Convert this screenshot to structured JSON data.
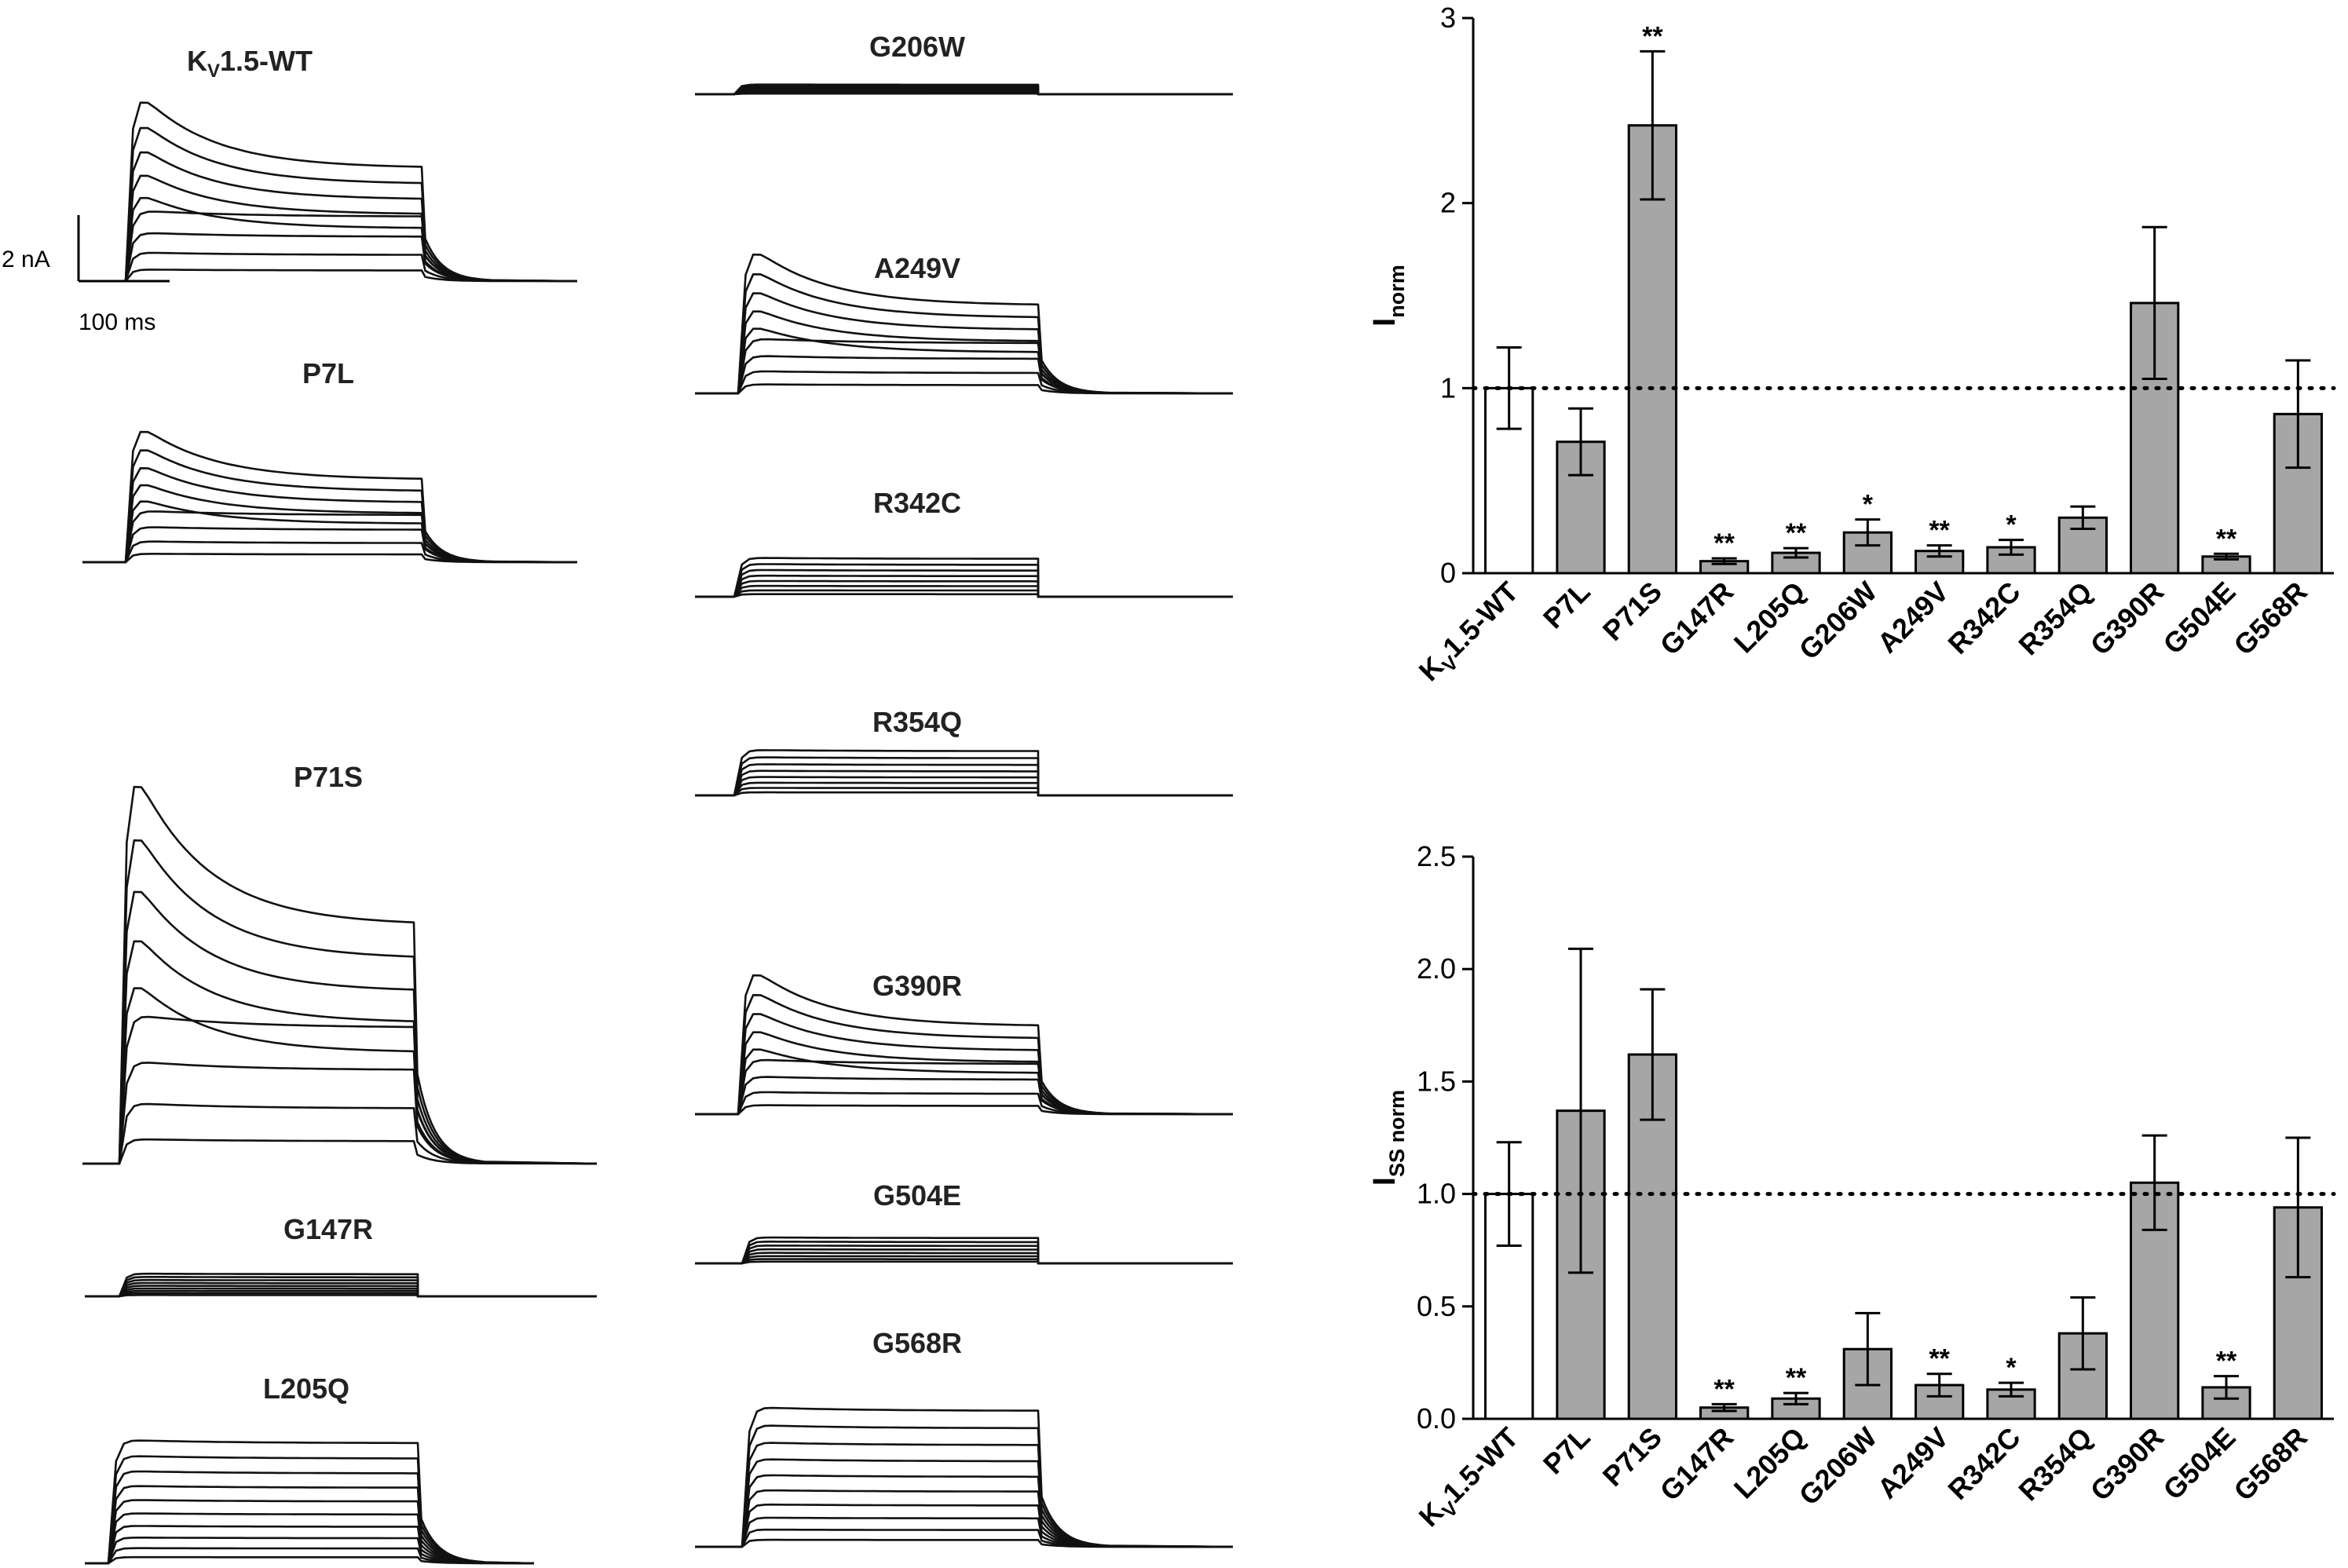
{
  "traces": {
    "scale_bar": {
      "current": "2 nA",
      "time": "100 ms"
    },
    "panels": [
      {
        "label": "K",
        "sub": "V",
        "rest": "1.5-WT",
        "peak_nA": 6.3,
        "n_sweeps": 9,
        "shape": "inactivating",
        "tail": true
      },
      {
        "label": "P7L",
        "peak_nA": 4.6,
        "n_sweeps": 9,
        "shape": "inactivating",
        "tail": true
      },
      {
        "label": "P71S",
        "peak_nA": 13.3,
        "n_sweeps": 9,
        "shape": "inactivating",
        "tail": true
      },
      {
        "label": "G147R",
        "peak_nA": 0.7,
        "n_sweeps": 9,
        "shape": "flat",
        "tail": false
      },
      {
        "label": "L205Q",
        "peak_nA": 3.8,
        "n_sweeps": 10,
        "shape": "flat",
        "tail": true
      },
      {
        "label": "G206W",
        "peak_nA": 0.3,
        "n_sweeps": 8,
        "shape": "flat",
        "tail": false
      },
      {
        "label": "A249V",
        "peak_nA": 4.9,
        "n_sweeps": 9,
        "shape": "inactivating",
        "tail": true
      },
      {
        "label": "R342C",
        "peak_nA": 1.2,
        "n_sweeps": 8,
        "shape": "flat",
        "tail": false
      },
      {
        "label": "R354Q",
        "peak_nA": 1.4,
        "n_sweeps": 8,
        "shape": "flat",
        "tail": false
      },
      {
        "label": "G390R",
        "peak_nA": 4.9,
        "n_sweeps": 9,
        "shape": "inactivating",
        "tail": true
      },
      {
        "label": "G504E",
        "peak_nA": 0.8,
        "n_sweeps": 8,
        "shape": "flat",
        "tail": false
      },
      {
        "label": "G568R",
        "peak_nA": 4.3,
        "n_sweeps": 10,
        "shape": "flat",
        "tail": true
      }
    ]
  },
  "chart_data": [
    {
      "type": "bar",
      "ylabel": "I",
      "ylabel_sub": "norm",
      "categories": [
        "K_V1.5-WT",
        "P7L",
        "P71S",
        "G147R",
        "L205Q",
        "G206W",
        "A249V",
        "R342C",
        "R354Q",
        "G390R",
        "G504E",
        "G568R"
      ],
      "values": [
        1.0,
        0.71,
        2.42,
        0.065,
        0.11,
        0.22,
        0.12,
        0.14,
        0.3,
        1.46,
        0.09,
        0.86
      ],
      "errors": [
        0.22,
        0.18,
        0.4,
        0.015,
        0.025,
        0.07,
        0.03,
        0.04,
        0.06,
        0.41,
        0.015,
        0.29
      ],
      "significance": [
        "",
        "",
        "**",
        "**",
        "**",
        "*",
        "**",
        "*",
        "",
        "",
        "**",
        ""
      ],
      "ylim": [
        0,
        3
      ],
      "yticks": [
        0,
        1,
        2,
        3
      ],
      "ytick_labels": [
        "0",
        "1",
        "2",
        "3"
      ],
      "reference_line": 1.0,
      "colors": {
        "control": "#ffffff",
        "mutant": "#a6a6a6",
        "stroke": "#000000"
      }
    },
    {
      "type": "bar",
      "ylabel": "I",
      "ylabel_sub": "SS norm",
      "categories": [
        "K_V1.5-WT",
        "P7L",
        "P71S",
        "G147R",
        "L205Q",
        "G206W",
        "A249V",
        "R342C",
        "R354Q",
        "G390R",
        "G504E",
        "G568R"
      ],
      "values": [
        1.0,
        1.37,
        1.62,
        0.05,
        0.09,
        0.31,
        0.15,
        0.13,
        0.38,
        1.05,
        0.14,
        0.94
      ],
      "errors": [
        0.23,
        0.72,
        0.29,
        0.015,
        0.025,
        0.16,
        0.05,
        0.03,
        0.16,
        0.21,
        0.05,
        0.31
      ],
      "significance": [
        "",
        "",
        "",
        "**",
        "**",
        "",
        "**",
        "*",
        "",
        "",
        "**",
        ""
      ],
      "ylim": [
        0,
        2.5
      ],
      "yticks": [
        0,
        0.5,
        1.0,
        1.5,
        2.0,
        2.5
      ],
      "ytick_labels": [
        "0.0",
        "0.5",
        "1.0",
        "1.5",
        "2.0",
        "2.5"
      ],
      "reference_line": 1.0,
      "colors": {
        "control": "#ffffff",
        "mutant": "#a6a6a6",
        "stroke": "#000000"
      }
    }
  ]
}
